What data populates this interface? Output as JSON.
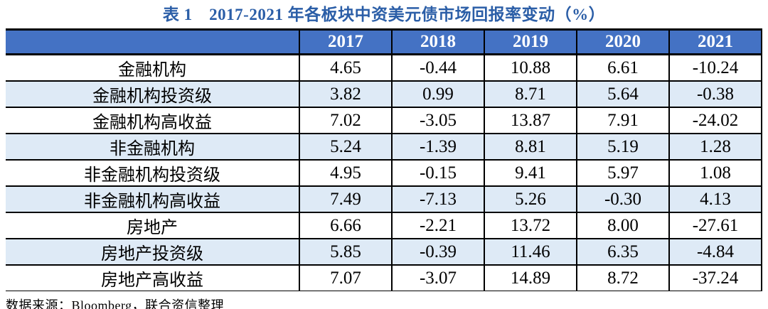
{
  "page": {
    "title": "表 1　2017-2021 年各板块中资美元债市场回报率变动（%）",
    "source_note": "数据来源：Bloomberg，联合资信整理"
  },
  "colors": {
    "title_blue": "#2B5EA7",
    "header_bg": "#4472C4",
    "header_text": "#FFFFFF",
    "row_alt_bg": "#DEEAF6",
    "border_color": "#000000"
  },
  "chart_data": {
    "type": "table",
    "title": "表 1　2017-2021 年各板块中资美元债市场回报率变动（%）",
    "columns": [
      "",
      "2017",
      "2018",
      "2019",
      "2020",
      "2021"
    ],
    "rows": [
      {
        "label": "金融机构",
        "values": [
          "4.65",
          "-0.44",
          "10.88",
          "6.61",
          "-10.24"
        ]
      },
      {
        "label": "金融机构投资级",
        "values": [
          "3.82",
          "0.99",
          "8.71",
          "5.64",
          "-0.38"
        ]
      },
      {
        "label": "金融机构高收益",
        "values": [
          "7.02",
          "-3.05",
          "13.87",
          "7.91",
          "-24.02"
        ]
      },
      {
        "label": "非金融机构",
        "values": [
          "5.24",
          "-1.39",
          "8.81",
          "5.19",
          "1.28"
        ]
      },
      {
        "label": "非金融机构投资级",
        "values": [
          "4.95",
          "-0.15",
          "9.41",
          "5.97",
          "1.08"
        ]
      },
      {
        "label": "非金融机构高收益",
        "values": [
          "7.49",
          "-7.13",
          "5.26",
          "-0.30",
          "4.13"
        ]
      },
      {
        "label": "房地产",
        "values": [
          "6.66",
          "-2.21",
          "13.72",
          "8.00",
          "-27.61"
        ]
      },
      {
        "label": "房地产投资级",
        "values": [
          "5.85",
          "-0.39",
          "11.46",
          "6.35",
          "-4.84"
        ]
      },
      {
        "label": "房地产高收益",
        "values": [
          "7.07",
          "-3.07",
          "14.89",
          "8.72",
          "-37.24"
        ]
      }
    ],
    "source": "数据来源：Bloomberg，联合资信整理"
  }
}
